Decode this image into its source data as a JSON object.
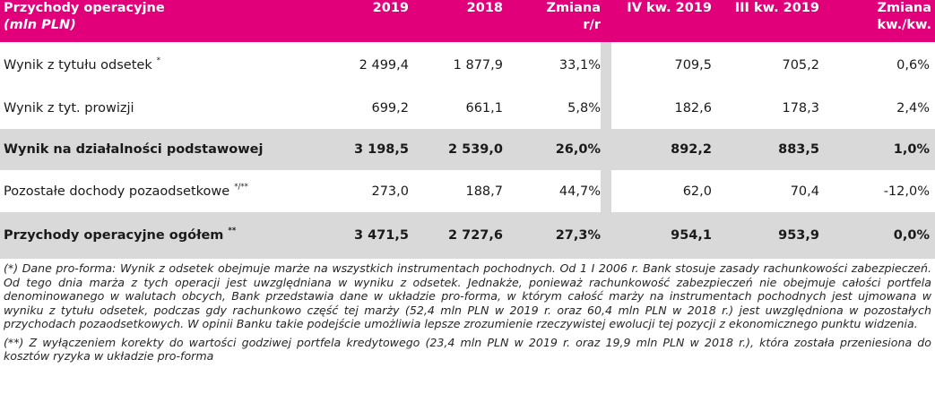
{
  "header": {
    "title_line1": "Przychody operacyjne",
    "title_line2": "(mln PLN)",
    "col_2019": "2019",
    "col_2018": "2018",
    "col_change_line1": "Zmiana",
    "col_change_line2": "r/r",
    "col_q4": "IV kw. 2019",
    "col_q3": "III kw. 2019",
    "col_qchange_line1": "Zmiana",
    "col_qchange_line2": "kw./kw."
  },
  "rows": [
    {
      "label": "Wynik z tytułu odsetek",
      "mark": "*",
      "v2019": "2 499,4",
      "v2018": "1 877,9",
      "yoy": "33,1%",
      "q4": "709,5",
      "q3": "705,2",
      "qoq": "0,6%"
    },
    {
      "label": "Wynik z tyt. prowizji",
      "mark": "",
      "v2019": "699,2",
      "v2018": "661,1",
      "yoy": "5,8%",
      "q4": "182,6",
      "q3": "178,3",
      "qoq": "2,4%"
    },
    {
      "label": "Wynik na działalności podstawowej",
      "mark": "",
      "v2019": "3 198,5",
      "v2018": "2 539,0",
      "yoy": "26,0%",
      "q4": "892,2",
      "q3": "883,5",
      "qoq": "1,0%"
    },
    {
      "label": "Pozostałe dochody pozaodsetkowe",
      "mark": "*/**",
      "v2019": "273,0",
      "v2018": "188,7",
      "yoy": "44,7%",
      "q4": "62,0",
      "q3": "70,4",
      "qoq": "-12,0%"
    },
    {
      "label": "Przychody operacyjne ogółem",
      "mark": "**",
      "v2019": "3 471,5",
      "v2018": "2 727,6",
      "yoy": "27,3%",
      "q4": "954,1",
      "q3": "953,9",
      "qoq": "0,0%"
    }
  ],
  "notes": {
    "note1": "(*) Dane pro-forma: Wynik z odsetek obejmuje marże na wszystkich instrumentach pochodnych. Od 1 I 2006 r. Bank stosuje zasady rachunkowości zabezpieczeń. Od tego dnia marża z tych operacji jest uwzględniana w wyniku z odsetek. Jednakże, ponieważ rachunkowość zabezpieczeń nie obejmuje całości portfela denominowanego w walutach obcych, Bank przedstawia dane w układzie pro-forma, w którym całość marży na instrumentach pochodnych jest ujmowana w wyniku z tytułu odsetek, podczas gdy rachunkowo część tej marży (52,4 mln PLN w 2019 r. oraz  60,4 mln PLN w 2018 r.) jest uwzględniona w pozostałych przychodach pozaodsetkowych. W opinii Banku takie podejście umożliwia lepsze zrozumienie rzeczywistej ewolucji tej pozycji z ekonomicznego punktu widzenia.",
    "note2": "(**) Z wyłączeniem korekty do wartości godziwej portfela kredytowego (23,4 mln PLN w 2019 r. oraz 19,9 mln PLN w 2018 r.), która została przeniesiona do kosztów ryzyka w układzie pro-forma"
  },
  "colors": {
    "header_bg": "#e2007a",
    "header_text": "#ffffff",
    "grey_row": "#d9d9d9"
  }
}
